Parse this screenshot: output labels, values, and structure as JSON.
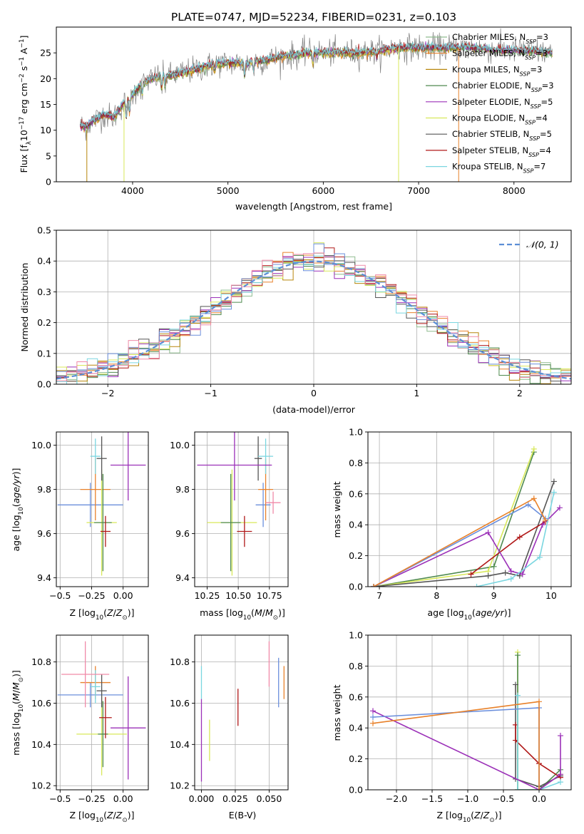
{
  "figure": {
    "title": "PLATE=0747, MJD=52234, FIBERID=0231, z=0.103"
  },
  "colors": {
    "chabrier_miles": "#8fbc8f",
    "salpeter_miles": "#e8812a",
    "kroupa_miles": "#b8860b",
    "chabrier_elodie": "#4f8a4f",
    "salpeter_elodie": "#9b30b8",
    "kroupa_elodie": "#d8e85a",
    "chabrier_stelib": "#555555",
    "salpeter_stelib": "#b01818",
    "kroupa_stelib": "#7ad6e0",
    "gaussian": "#5b8ed6",
    "blue_model": "#6b8fdc",
    "pink_model": "#f08aa8"
  },
  "chart_data": [
    {
      "id": "spectrum",
      "type": "line",
      "title": "PLATE=0747, MJD=52234, FIBERID=0231, z=0.103",
      "xlabel": "wavelength [Angstrom, rest frame]",
      "ylabel": "Flux [f_λ10^-17 erg cm^-2 s^-1 A^-1]",
      "xlim": [
        3200,
        8600
      ],
      "ylim": [
        0,
        30
      ],
      "xticks": [
        4000,
        5000,
        6000,
        7000,
        8000
      ],
      "yticks": [
        0,
        5,
        10,
        15,
        20,
        25
      ],
      "legend_position": "top-right",
      "legend": [
        {
          "label": "Chabrier MILES, N_SSP=3",
          "base": "Chabrier MILES, N",
          "sub": "SSP",
          "tail": "=3",
          "color_key": "chabrier_miles"
        },
        {
          "label": "Salpeter MILES, N_SSP=3",
          "base": "Salpeter MILES, N",
          "sub": "SSP",
          "tail": "=3",
          "color_key": "salpeter_miles"
        },
        {
          "label": "Kroupa MILES, N_SSP=3",
          "base": "Kroupa MILES, N",
          "sub": "SSP",
          "tail": "=3",
          "color_key": "kroupa_miles"
        },
        {
          "label": "Chabrier ELODIE, N_SSP=3",
          "base": "Chabrier ELODIE, N",
          "sub": "SSP",
          "tail": "=3",
          "color_key": "chabrier_elodie"
        },
        {
          "label": "Salpeter ELODIE, N_SSP=5",
          "base": "Salpeter ELODIE, N",
          "sub": "SSP",
          "tail": "=5",
          "color_key": "salpeter_elodie"
        },
        {
          "label": "Kroupa ELODIE, N_SSP=4",
          "base": "Kroupa ELODIE, N",
          "sub": "SSP",
          "tail": "=4",
          "color_key": "kroupa_elodie"
        },
        {
          "label": "Chabrier STELIB, N_SSP=5",
          "base": "Chabrier STELIB, N",
          "sub": "SSP",
          "tail": "=5",
          "color_key": "chabrier_stelib"
        },
        {
          "label": "Salpeter STELIB, N_SSP=4",
          "base": "Salpeter STELIB, N",
          "sub": "SSP",
          "tail": "=4",
          "color_key": "salpeter_stelib"
        },
        {
          "label": "Kroupa STELIB, N_SSP=7",
          "base": "Kroupa STELIB, N",
          "sub": "SSP",
          "tail": "=7",
          "color_key": "kroupa_stelib"
        }
      ],
      "continuum": [
        [
          3450,
          11
        ],
        [
          3500,
          10.5
        ],
        [
          3600,
          12
        ],
        [
          3700,
          13
        ],
        [
          3800,
          12.5
        ],
        [
          3900,
          15
        ],
        [
          4000,
          17
        ],
        [
          4100,
          19
        ],
        [
          4200,
          20
        ],
        [
          4300,
          20.5
        ],
        [
          4400,
          20.5
        ],
        [
          4500,
          21
        ],
        [
          4600,
          21.5
        ],
        [
          4700,
          22
        ],
        [
          4800,
          22.5
        ],
        [
          4900,
          23
        ],
        [
          5000,
          23
        ],
        [
          5100,
          23
        ],
        [
          5200,
          23
        ],
        [
          5300,
          23.5
        ],
        [
          5400,
          23.5
        ],
        [
          5500,
          24
        ],
        [
          5600,
          24.5
        ],
        [
          5700,
          24.5
        ],
        [
          5800,
          25
        ],
        [
          5900,
          25
        ],
        [
          6000,
          25
        ],
        [
          6200,
          25
        ],
        [
          6400,
          25
        ],
        [
          6600,
          25.5
        ],
        [
          6800,
          26
        ],
        [
          7000,
          26
        ],
        [
          7200,
          26
        ],
        [
          7400,
          26
        ],
        [
          7600,
          26
        ],
        [
          7800,
          25.5
        ],
        [
          8000,
          25.5
        ],
        [
          8200,
          25.3
        ],
        [
          8400,
          25
        ]
      ],
      "absorption_lines": [
        [
          3934,
          3.5
        ],
        [
          3969,
          3
        ],
        [
          4102,
          2
        ],
        [
          4305,
          2.5
        ],
        [
          4340,
          2
        ],
        [
          4861,
          1.5
        ],
        [
          5175,
          3
        ],
        [
          5270,
          2
        ],
        [
          5890,
          2
        ],
        [
          6563,
          1.5
        ],
        [
          8498,
          2
        ],
        [
          8542,
          2.5
        ],
        [
          8662,
          2
        ]
      ]
    },
    {
      "id": "residuals",
      "type": "line",
      "xlabel": "(data-model)/error",
      "ylabel": "Normed distribution",
      "xlim": [
        -2.5,
        2.5
      ],
      "ylim": [
        0,
        0.5
      ],
      "xticks": [
        -2,
        -1,
        0,
        1,
        2
      ],
      "yticks": [
        0.0,
        0.1,
        0.2,
        0.3,
        0.4,
        0.5
      ],
      "grid": true,
      "legend_position": "top-right",
      "gaussian_label": "𝒩(0, 1)",
      "bin_width": 0.1
    },
    {
      "id": "age-vs-z",
      "type": "scatter",
      "xlabel": "Z [log10(Z/Z⊙)]",
      "ylabel": "age [log10(age/yr)]",
      "xlim": [
        -0.53,
        0.2
      ],
      "ylim": [
        9.36,
        10.06
      ],
      "xticks": [
        -0.5,
        -0.25,
        0.0
      ],
      "yticks": [
        9.4,
        9.6,
        9.8,
        10.0
      ],
      "grid": true,
      "points": [
        {
          "x": -0.26,
          "y": 9.73,
          "xerr": 0.26,
          "yerr": 0.1,
          "color_key": "blue_model"
        },
        {
          "x": -0.22,
          "y": 9.8,
          "xerr": 0.12,
          "yerr": 0.14,
          "color_key": "salpeter_miles"
        },
        {
          "x": -0.17,
          "y": 9.65,
          "xerr": 0.12,
          "yerr": 0.24,
          "color_key": "kroupa_elodie"
        },
        {
          "x": -0.16,
          "y": 9.65,
          "xerr": 0.07,
          "yerr": 0.22,
          "color_key": "chabrier_elodie"
        },
        {
          "x": -0.14,
          "y": 9.61,
          "xerr": 0.04,
          "yerr": 0.07,
          "color_key": "salpeter_stelib"
        },
        {
          "x": -0.17,
          "y": 9.94,
          "xerr": 0.04,
          "yerr": 0.1,
          "color_key": "chabrier_stelib"
        },
        {
          "x": -0.22,
          "y": 9.95,
          "xerr": 0.04,
          "yerr": 0.08,
          "color_key": "kroupa_stelib"
        },
        {
          "x": 0.04,
          "y": 9.91,
          "xerr": 0.14,
          "yerr": 0.16,
          "color_key": "salpeter_elodie"
        }
      ]
    },
    {
      "id": "age-vs-mass",
      "type": "scatter",
      "xlabel": "mass [log10(M/M⊙)]",
      "ylabel": "",
      "xlim": [
        10.15,
        10.9
      ],
      "ylim": [
        9.36,
        10.06
      ],
      "xticks": [
        10.25,
        10.5,
        10.75
      ],
      "yticks": [
        9.4,
        9.6,
        9.8,
        10.0
      ],
      "grid": true,
      "points": [
        {
          "x": 10.7,
          "y": 9.73,
          "xerr": 0.06,
          "yerr": 0.1,
          "color_key": "blue_model"
        },
        {
          "x": 10.72,
          "y": 9.8,
          "xerr": 0.06,
          "yerr": 0.14,
          "color_key": "salpeter_miles"
        },
        {
          "x": 10.45,
          "y": 9.65,
          "xerr": 0.2,
          "yerr": 0.24,
          "color_key": "kroupa_elodie"
        },
        {
          "x": 10.44,
          "y": 9.65,
          "xerr": 0.08,
          "yerr": 0.22,
          "color_key": "chabrier_elodie"
        },
        {
          "x": 10.55,
          "y": 9.61,
          "xerr": 0.06,
          "yerr": 0.07,
          "color_key": "salpeter_stelib"
        },
        {
          "x": 10.66,
          "y": 9.94,
          "xerr": 0.03,
          "yerr": 0.1,
          "color_key": "chabrier_stelib"
        },
        {
          "x": 10.72,
          "y": 9.95,
          "xerr": 0.06,
          "yerr": 0.08,
          "color_key": "kroupa_stelib"
        },
        {
          "x": 10.47,
          "y": 9.91,
          "xerr": 0.3,
          "yerr": 0.16,
          "color_key": "salpeter_elodie"
        },
        {
          "x": 10.78,
          "y": 9.74,
          "xerr": 0.06,
          "yerr": 0.05,
          "color_key": "pink_model"
        }
      ]
    },
    {
      "id": "massweight-vs-age",
      "type": "line",
      "xlabel": "age [log10(age/yr)]",
      "ylabel": "mass weight",
      "xlim": [
        6.8,
        10.35
      ],
      "ylim": [
        0,
        1.0
      ],
      "xticks": [
        7,
        8,
        9,
        10
      ],
      "yticks": [
        0.0,
        0.2,
        0.4,
        0.6,
        0.8,
        1.0
      ],
      "grid": true,
      "series": [
        {
          "color_key": "chabrier_elodie",
          "x": [
            6.9,
            9.0,
            9.7
          ],
          "y": [
            0.0,
            0.13,
            0.87
          ]
        },
        {
          "color_key": "kroupa_elodie",
          "x": [
            6.9,
            8.9,
            9.7
          ],
          "y": [
            0.0,
            0.1,
            0.89
          ]
        },
        {
          "color_key": "chabrier_stelib",
          "x": [
            6.9,
            8.9,
            9.2,
            9.45,
            10.05
          ],
          "y": [
            0.0,
            0.07,
            0.09,
            0.07,
            0.68
          ]
        },
        {
          "color_key": "salpeter_stelib",
          "x": [
            8.6,
            9.45,
            9.9
          ],
          "y": [
            0.08,
            0.32,
            0.42
          ]
        },
        {
          "color_key": "salpeter_elodie",
          "x": [
            6.9,
            8.9,
            9.3,
            9.5,
            9.85,
            10.15
          ],
          "y": [
            0.0,
            0.35,
            0.1,
            0.08,
            0.4,
            0.51
          ]
        },
        {
          "color_key": "kroupa_stelib",
          "x": [
            8.7,
            9.3,
            9.8,
            10.05
          ],
          "y": [
            0.0,
            0.05,
            0.19,
            0.61
          ]
        },
        {
          "color_key": "blue_model",
          "x": [
            6.9,
            9.6,
            9.9
          ],
          "y": [
            0.0,
            0.53,
            0.44
          ]
        },
        {
          "color_key": "salpeter_miles",
          "x": [
            6.9,
            9.7,
            9.9
          ],
          "y": [
            0.0,
            0.57,
            0.43
          ]
        }
      ]
    },
    {
      "id": "mass-vs-z",
      "type": "scatter",
      "xlabel": "Z [log10(Z/Z⊙)]",
      "ylabel": "mass [log10(M/M⊙)]",
      "xlim": [
        -0.53,
        0.2
      ],
      "ylim": [
        10.18,
        10.93
      ],
      "xticks": [
        -0.5,
        -0.25,
        0.0
      ],
      "yticks": [
        10.2,
        10.4,
        10.6,
        10.8
      ],
      "grid": true,
      "points": [
        {
          "x": -0.26,
          "y": 10.64,
          "xerr": 0.26,
          "yerr": 0.06,
          "color_key": "blue_model"
        },
        {
          "x": -0.22,
          "y": 10.7,
          "xerr": 0.12,
          "yerr": 0.08,
          "color_key": "salpeter_miles"
        },
        {
          "x": -0.17,
          "y": 10.45,
          "xerr": 0.2,
          "yerr": 0.2,
          "color_key": "kroupa_elodie"
        },
        {
          "x": -0.16,
          "y": 10.45,
          "xerr": 0.04,
          "yerr": 0.16,
          "color_key": "chabrier_elodie"
        },
        {
          "x": -0.14,
          "y": 10.53,
          "xerr": 0.05,
          "yerr": 0.1,
          "color_key": "salpeter_stelib"
        },
        {
          "x": -0.17,
          "y": 10.66,
          "xerr": 0.04,
          "yerr": 0.08,
          "color_key": "chabrier_stelib"
        },
        {
          "x": -0.22,
          "y": 10.68,
          "xerr": 0.04,
          "yerr": 0.08,
          "color_key": "kroupa_stelib"
        },
        {
          "x": 0.04,
          "y": 10.48,
          "xerr": 0.14,
          "yerr": 0.25,
          "color_key": "salpeter_elodie"
        },
        {
          "x": -0.3,
          "y": 10.74,
          "xerr": 0.19,
          "yerr": 0.16,
          "color_key": "pink_model"
        }
      ]
    },
    {
      "id": "mass-vs-ebv",
      "type": "scatter",
      "xlabel": "E(B-V)",
      "ylabel": "",
      "xlim": [
        -0.005,
        0.064
      ],
      "ylim": [
        10.18,
        10.93
      ],
      "xticks": [
        0.0,
        0.025,
        0.05
      ],
      "yticks": [
        10.2,
        10.4,
        10.6,
        10.8
      ],
      "grid": true,
      "points": [
        {
          "x": 0.0,
          "y": 10.7,
          "yerr": 0.08,
          "color_key": "kroupa_stelib"
        },
        {
          "x": 0.0,
          "y": 10.42,
          "yerr": 0.2,
          "color_key": "salpeter_elodie"
        },
        {
          "x": 0.006,
          "y": 10.42,
          "yerr": 0.1,
          "color_key": "kroupa_elodie"
        },
        {
          "x": 0.027,
          "y": 10.58,
          "yerr": 0.09,
          "color_key": "salpeter_stelib"
        },
        {
          "x": 0.05,
          "y": 10.79,
          "yerr": 0.11,
          "color_key": "pink_model"
        },
        {
          "x": 0.057,
          "y": 10.7,
          "yerr": 0.12,
          "color_key": "blue_model"
        },
        {
          "x": 0.061,
          "y": 10.7,
          "yerr": 0.08,
          "color_key": "salpeter_miles"
        }
      ]
    },
    {
      "id": "massweight-vs-z",
      "type": "line",
      "xlabel": "Z [log10(Z/Z⊙)]",
      "ylabel": "mass weight",
      "xlim": [
        -2.4,
        0.45
      ],
      "ylim": [
        0,
        1.0
      ],
      "xticks": [
        -2.0,
        -1.5,
        -1.0,
        -0.5,
        0.0
      ],
      "yticks": [
        0.0,
        0.2,
        0.4,
        0.6,
        0.8,
        1.0
      ],
      "grid": true,
      "series": [
        {
          "color_key": "kroupa_elodie",
          "x": [
            -0.3,
            -0.3,
            0.0,
            0.3
          ],
          "y": [
            0.89,
            0.0,
            0.0,
            0.1
          ]
        },
        {
          "color_key": "chabrier_elodie",
          "x": [
            -0.3,
            -0.3,
            0.0,
            0.3
          ],
          "y": [
            0.87,
            0.0,
            0.0,
            0.13
          ]
        },
        {
          "color_key": "chabrier_stelib",
          "x": [
            -0.33,
            -0.33,
            0.0,
            0.3
          ],
          "y": [
            0.68,
            0.07,
            0.02,
            0.09
          ]
        },
        {
          "color_key": "salpeter_stelib",
          "x": [
            -0.33,
            -0.33,
            0.0,
            0.3
          ],
          "y": [
            0.42,
            0.32,
            0.17,
            0.08
          ]
        },
        {
          "color_key": "kroupa_stelib",
          "x": [
            -0.3,
            -0.3,
            0.0,
            0.3
          ],
          "y": [
            0.61,
            0.0,
            0.0,
            0.05
          ]
        },
        {
          "color_key": "salpeter_elodie",
          "x": [
            -2.33,
            0.0,
            0.3,
            0.3
          ],
          "y": [
            0.51,
            0.0,
            0.1,
            0.35
          ]
        },
        {
          "color_key": "blue_model",
          "x": [
            -2.33,
            0.0,
            0.0
          ],
          "y": [
            0.47,
            0.53,
            0.0
          ]
        },
        {
          "color_key": "salpeter_miles",
          "x": [
            -2.33,
            0.0,
            0.0
          ],
          "y": [
            0.43,
            0.57,
            0.0
          ]
        }
      ]
    }
  ]
}
